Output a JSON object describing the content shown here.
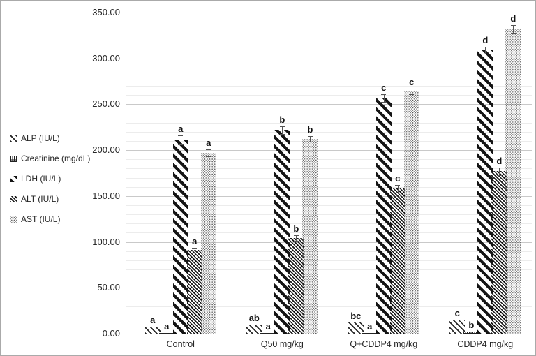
{
  "figure": {
    "background": "#ffffff",
    "border_color": "#aaaaaa",
    "text_color": "#262626",
    "major_grid_color": "#c9c9c9",
    "minor_grid_color": "#ececec",
    "axis_line_color": "#9a9a9a"
  },
  "chart_data": {
    "type": "bar",
    "title": "",
    "xlabel": "",
    "ylabel": "",
    "categories": [
      "Control",
      "Q50 mg/kg",
      "Q+CDDP4 mg/kg",
      "CDDP4 mg/kg"
    ],
    "series": [
      {
        "name": "ALP (IU/L)",
        "pattern": "thin-diagonal-hatch",
        "values": [
          8,
          10,
          12,
          15
        ],
        "sig_labels": [
          "a",
          "ab",
          "bc",
          "c"
        ],
        "errors": [
          0,
          0,
          0,
          0
        ]
      },
      {
        "name": "Creatinine (mg/dL)",
        "pattern": "dense-grid",
        "values": [
          1,
          1,
          1,
          2
        ],
        "sig_labels": [
          "a",
          "a",
          "a",
          "b"
        ],
        "errors": [
          0,
          0,
          0,
          0
        ]
      },
      {
        "name": "LDH (IU/L)",
        "pattern": "bold-diagonal-stripe",
        "values": [
          211,
          222,
          257,
          309
        ],
        "sig_labels": [
          "a",
          "b",
          "c",
          "d"
        ],
        "errors": [
          5,
          4,
          4,
          4
        ]
      },
      {
        "name": "ALT (IU/L)",
        "pattern": "fine-diagonal-hatch",
        "values": [
          91,
          104,
          158,
          177
        ],
        "sig_labels": [
          "a",
          "b",
          "c",
          "d"
        ],
        "errors": [
          3,
          3,
          4,
          4
        ]
      },
      {
        "name": "AST (IU/L)",
        "pattern": "dotted-checker",
        "values": [
          197,
          212,
          264,
          332
        ],
        "sig_labels": [
          "a",
          "b",
          "c",
          "d"
        ],
        "errors": [
          4,
          3,
          3,
          4
        ]
      }
    ],
    "ylim": [
      0,
      350
    ],
    "y_major_step": 50,
    "y_minor_step": 10,
    "y_tick_labels": [
      "0.00",
      "50.00",
      "100.00",
      "150.00",
      "200.00",
      "250.00",
      "300.00",
      "350.00"
    ],
    "grid": true,
    "legend_position": "left"
  }
}
